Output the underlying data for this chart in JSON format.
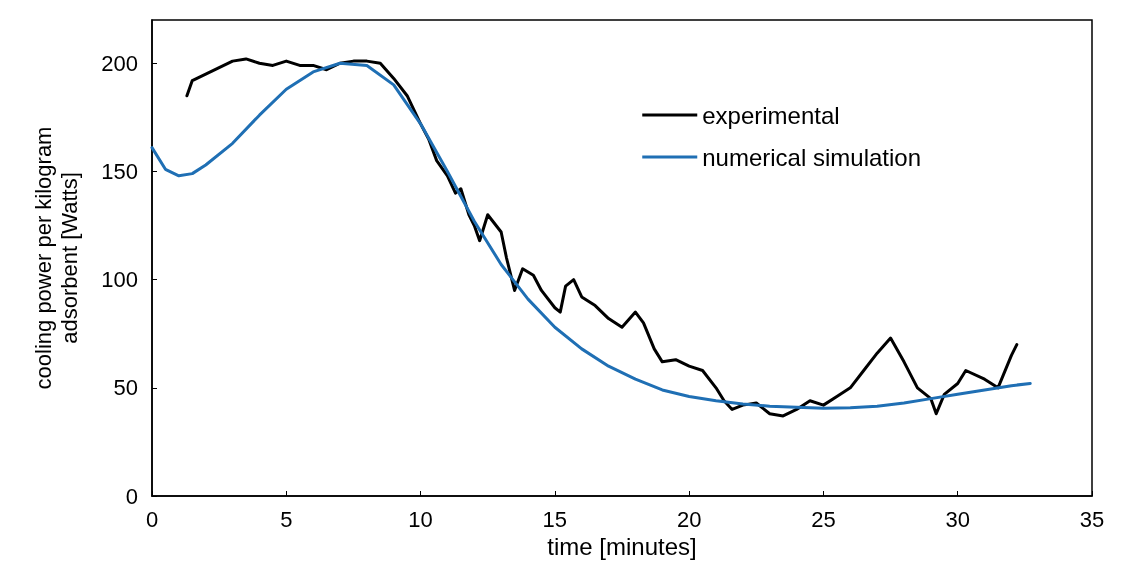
{
  "chart_data": {
    "type": "line",
    "xlabel": "time [minutes]",
    "ylabel": "cooling power per kilogram\nadsorbent [Watts]",
    "xlim": [
      0,
      35
    ],
    "xticks": [
      0,
      5,
      10,
      15,
      20,
      25,
      30,
      35
    ],
    "ylim": [
      0,
      220
    ],
    "yticks": [
      0,
      50,
      100,
      150,
      200
    ],
    "grid": false,
    "legend": "top right",
    "marker": "none",
    "line_style": "solid",
    "series": [
      {
        "name": "experimental",
        "color": "#000000",
        "x": [
          1.3,
          1.5,
          2,
          2.5,
          3,
          3.5,
          4,
          4.5,
          5,
          5.5,
          6,
          6.5,
          7,
          7.5,
          8,
          8.5,
          9,
          9.5,
          10,
          10.3,
          10.6,
          11,
          11.3,
          11.5,
          11.8,
          12,
          12.2,
          12.5,
          13,
          13.2,
          13.5,
          13.8,
          14.2,
          14.5,
          15,
          15.2,
          15.4,
          15.7,
          16,
          16.5,
          17,
          17.5,
          18,
          18.3,
          18.7,
          19,
          19.5,
          20,
          20.5,
          21,
          21.3,
          21.6,
          22,
          22.5,
          23,
          23.5,
          24,
          24.5,
          25,
          25.5,
          26,
          26.5,
          27,
          27.5,
          28,
          28.5,
          29,
          29.2,
          29.5,
          30,
          30.3,
          31,
          31.5,
          32,
          32.2
        ],
        "values": [
          185,
          192,
          195,
          198,
          201,
          202,
          200,
          199,
          201,
          199,
          199,
          197,
          200,
          201,
          201,
          200,
          193,
          185,
          172,
          165,
          155,
          148,
          140,
          142,
          130,
          125,
          118,
          130,
          122,
          110,
          95,
          105,
          102,
          95,
          87,
          85,
          97,
          100,
          92,
          88,
          82,
          78,
          85,
          80,
          68,
          62,
          63,
          60,
          58,
          50,
          44,
          40,
          42,
          43,
          38,
          37,
          40,
          44,
          42,
          46,
          50,
          58,
          66,
          73,
          62,
          50,
          45,
          38,
          47,
          52,
          58,
          54,
          50,
          65,
          70
        ]
      },
      {
        "name": "numerical simulation",
        "color": "#1f6fb4",
        "x": [
          0,
          0.5,
          1,
          1.5,
          2,
          3,
          4,
          5,
          6,
          7,
          8,
          9,
          10,
          11,
          12,
          13,
          14,
          15,
          16,
          17,
          18,
          19,
          20,
          21,
          22,
          23,
          24,
          25,
          26,
          27,
          28,
          29,
          30,
          31,
          32,
          32.7
        ],
        "values": [
          161,
          151,
          148,
          149,
          153,
          163,
          176,
          188,
          196,
          200,
          199,
          190,
          172,
          150,
          127,
          107,
          91,
          78,
          68,
          60,
          54,
          49,
          46,
          44,
          42.5,
          41.5,
          41,
          40.5,
          40.8,
          41.5,
          43,
          45,
          47,
          49,
          51,
          52
        ]
      }
    ]
  }
}
